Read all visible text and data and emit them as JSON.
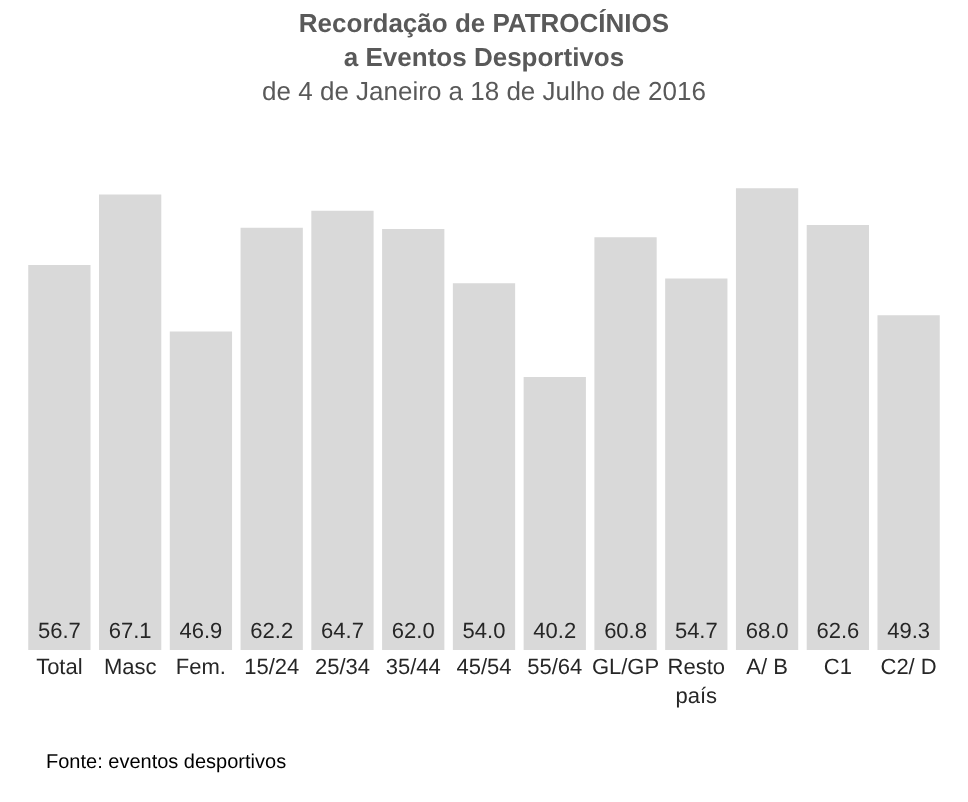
{
  "chart_data": {
    "type": "bar",
    "title": "Recordação de PATROCÍNIOS\na Eventos Desportivos",
    "subtitle": "de 4 de Janeiro a 18 de Julho de 2016",
    "categories": [
      "Total",
      "Masc",
      "Fem.",
      "15/24",
      "25/34",
      "35/44",
      "45/54",
      "55/64",
      "GL/GP",
      "Resto país",
      "A/ B",
      "C1",
      "C2/ D"
    ],
    "values": [
      56.7,
      67.1,
      46.9,
      62.2,
      64.7,
      62.0,
      54.0,
      40.2,
      60.8,
      54.7,
      68.0,
      62.6,
      49.3
    ],
    "value_labels": [
      "56.7",
      "67.1",
      "46.9",
      "62.2",
      "64.7",
      "62.0",
      "54.0",
      "40.2",
      "60.8",
      "54.7",
      "68.0",
      "62.6",
      "49.3"
    ],
    "color": "#d9d9d9",
    "grid": false,
    "annotations": [
      "Fonte: eventos desportivos"
    ]
  }
}
